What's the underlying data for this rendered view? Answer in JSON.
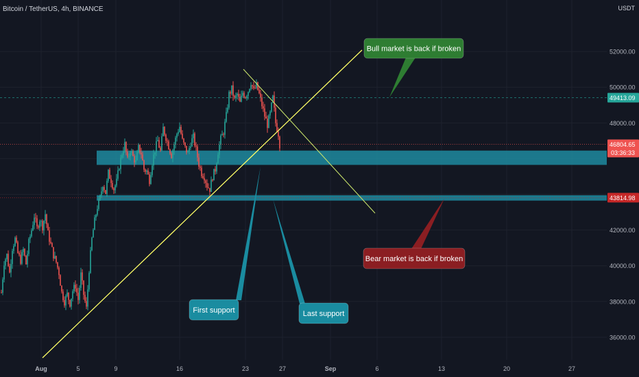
{
  "header": {
    "symbol_title": "Bitcoin / TetherUS, 4h, BINANCE",
    "currency_unit": "USDT"
  },
  "colors": {
    "background": "#131722",
    "grid": "#1e222d",
    "up": "#26a69a",
    "down": "#ef5350",
    "zone": "#1f8a9f",
    "trendline": "#ffff66",
    "bull_callout": "#2e7d32",
    "bear_callout": "#8b1e22",
    "support_callout": "#1a8ca0"
  },
  "chart_data": {
    "type": "candlestick",
    "title": "Bitcoin / TetherUS, 4h, BINANCE",
    "ylabel": "USDT",
    "ylim": [
      35000,
      54200
    ],
    "y_ticks": [
      36000,
      38000,
      40000,
      42000,
      44000,
      46000,
      48000,
      50000,
      52000
    ],
    "y_tick_labels": [
      "36000.00",
      "38000.00",
      "40000.00",
      "42000.00",
      "",
      "",
      "48000.00",
      "50000.00",
      "52000.00"
    ],
    "x_ticks": [
      "Aug",
      "5",
      "9",
      "16",
      "23",
      "27",
      "Sep",
      "6",
      "13",
      "20",
      "27"
    ],
    "price_labels": [
      {
        "label": "49413.09",
        "value": 49413.09,
        "color": "#26a69a",
        "dashed": true
      },
      {
        "label": "46804.65",
        "value": 46804.65,
        "countdown": "03:36:33",
        "color": "#ef5350"
      },
      {
        "label": "43814.98",
        "value": 43814.98,
        "color": "#c62828"
      }
    ],
    "support_zones": [
      {
        "from": 45650,
        "to": 46450
      },
      {
        "from": 43650,
        "to": 43950
      }
    ],
    "annotations": [
      {
        "text": "Bull market is back if broken",
        "kind": "bull"
      },
      {
        "text": "Bear market is back if broken",
        "kind": "bear"
      },
      {
        "text": "First support",
        "kind": "support"
      },
      {
        "text": "Last support",
        "kind": "support"
      }
    ],
    "anchor_closes": [
      [
        0,
        38500
      ],
      [
        4,
        40200
      ],
      [
        8,
        40600
      ],
      [
        12,
        39600
      ],
      [
        16,
        41000
      ],
      [
        20,
        41500
      ],
      [
        24,
        40700
      ],
      [
        28,
        40300
      ],
      [
        32,
        40900
      ],
      [
        36,
        40100
      ],
      [
        40,
        41300
      ],
      [
        44,
        42000
      ],
      [
        48,
        42800
      ],
      [
        52,
        42100
      ],
      [
        56,
        42600
      ],
      [
        60,
        42200
      ],
      [
        64,
        42900
      ],
      [
        68,
        41800
      ],
      [
        72,
        41200
      ],
      [
        76,
        40600
      ],
      [
        80,
        40200
      ],
      [
        84,
        39600
      ],
      [
        88,
        38500
      ],
      [
        92,
        38000
      ],
      [
        96,
        38400
      ],
      [
        100,
        37900
      ],
      [
        104,
        38600
      ],
      [
        108,
        38900
      ],
      [
        112,
        38100
      ],
      [
        116,
        39500
      ],
      [
        120,
        38400
      ],
      [
        124,
        37600
      ],
      [
        128,
        39800
      ],
      [
        132,
        41500
      ],
      [
        136,
        42500
      ],
      [
        140,
        43300
      ],
      [
        144,
        43800
      ],
      [
        148,
        44600
      ],
      [
        152,
        44100
      ],
      [
        156,
        45200
      ],
      [
        160,
        44800
      ],
      [
        164,
        44300
      ],
      [
        168,
        44700
      ],
      [
        172,
        45600
      ],
      [
        176,
        46300
      ],
      [
        180,
        46800
      ],
      [
        184,
        45900
      ],
      [
        188,
        46500
      ],
      [
        192,
        46100
      ],
      [
        196,
        45800
      ],
      [
        200,
        46600
      ],
      [
        204,
        46300
      ],
      [
        208,
        45400
      ],
      [
        212,
        45300
      ],
      [
        216,
        44800
      ],
      [
        220,
        45800
      ],
      [
        224,
        46500
      ],
      [
        228,
        47000
      ],
      [
        232,
        46400
      ],
      [
        236,
        47700
      ],
      [
        240,
        47200
      ],
      [
        244,
        46700
      ],
      [
        248,
        46200
      ],
      [
        252,
        46800
      ],
      [
        256,
        47400
      ],
      [
        260,
        47800
      ],
      [
        264,
        47000
      ],
      [
        268,
        46600
      ],
      [
        272,
        46300
      ],
      [
        276,
        46900
      ],
      [
        280,
        47200
      ],
      [
        284,
        46500
      ],
      [
        288,
        45700
      ],
      [
        292,
        45200
      ],
      [
        296,
        45000
      ],
      [
        300,
        44500
      ],
      [
        304,
        44300
      ],
      [
        308,
        45000
      ],
      [
        312,
        45400
      ],
      [
        316,
        46400
      ],
      [
        320,
        47100
      ],
      [
        324,
        47500
      ],
      [
        328,
        48400
      ],
      [
        332,
        49600
      ],
      [
        336,
        49900
      ],
      [
        340,
        49300
      ],
      [
        344,
        49600
      ],
      [
        348,
        49100
      ],
      [
        352,
        49700
      ],
      [
        356,
        49500
      ],
      [
        360,
        49800
      ],
      [
        364,
        50300
      ],
      [
        368,
        49800
      ],
      [
        372,
        50100
      ],
      [
        376,
        49600
      ],
      [
        380,
        49000
      ],
      [
        384,
        48400
      ],
      [
        388,
        47900
      ],
      [
        392,
        48500
      ],
      [
        396,
        49400
      ],
      [
        400,
        48000
      ],
      [
        404,
        47400
      ],
      [
        406,
        46800
      ]
    ]
  }
}
